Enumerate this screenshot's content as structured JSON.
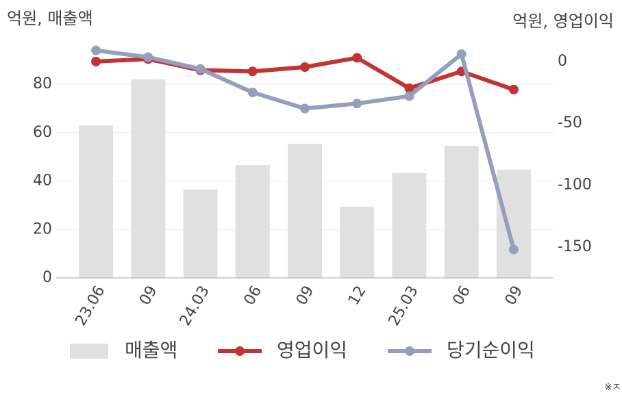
{
  "chart_data": {
    "type": "bar-line",
    "y_label": "억원, 매출액",
    "y2_label": "억원, 영업이익",
    "footnote": "※ㅈ",
    "categories": [
      "23.06",
      "09",
      "24.03",
      "06",
      "09",
      "12",
      "25.03",
      "06",
      "09"
    ],
    "series": [
      {
        "name": "매출액",
        "type": "bar",
        "color": "#e0e0e0",
        "values": [
          63,
          82,
          36.5,
          46.6,
          55.4,
          29.4,
          43.3,
          54.6,
          44.7
        ]
      },
      {
        "name": "영업이익",
        "type": "line",
        "axis": "y2",
        "color": "#c23334",
        "values": [
          0,
          2,
          -7,
          -8,
          -4.5,
          3,
          -21.6,
          -8,
          -22.7
        ]
      },
      {
        "name": "당기순이익",
        "type": "line",
        "axis": "y2",
        "color": "#93a0bb",
        "values": [
          9,
          3.5,
          -6,
          -25,
          -38,
          -34,
          -28,
          6,
          -152
        ]
      }
    ],
    "ylim": [
      0,
      95
    ],
    "yticks": [
      0,
      20,
      40,
      60,
      80
    ],
    "y2lim": [
      -175,
      11
    ],
    "y2ticks": [
      0,
      -50,
      -100,
      -150
    ],
    "grid": true
  }
}
